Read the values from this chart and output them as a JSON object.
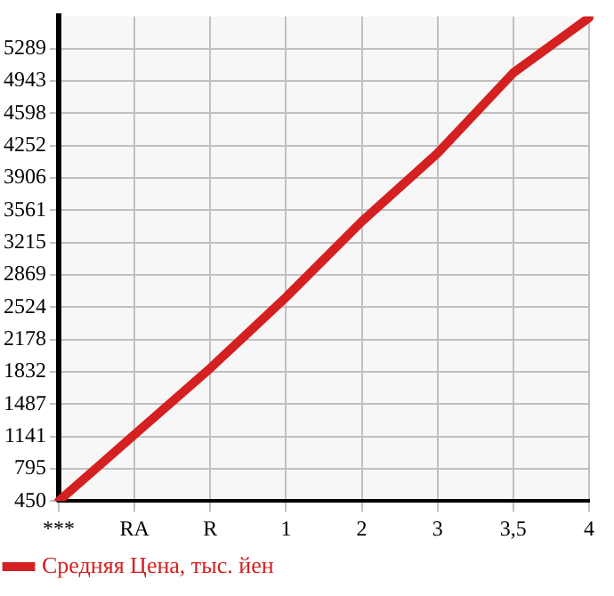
{
  "chart_data": {
    "type": "line",
    "categories": [
      "***",
      "RA",
      "R",
      "1",
      "2",
      "3",
      "3,5",
      "4"
    ],
    "series": [
      {
        "name": "Средняя Цена, тыс. йен",
        "color": "#d42020",
        "values": [
          450,
          1160,
          1870,
          2630,
          3440,
          4170,
          5030,
          5620
        ]
      }
    ],
    "ylim": [
      450,
      5634
    ],
    "yticks": [
      450,
      795,
      1141,
      1487,
      1832,
      2178,
      2524,
      2869,
      3215,
      3561,
      3906,
      4252,
      4598,
      4943,
      5289
    ],
    "grid": true,
    "legend": "bottom left",
    "marker": "none",
    "line_style": "solid"
  }
}
